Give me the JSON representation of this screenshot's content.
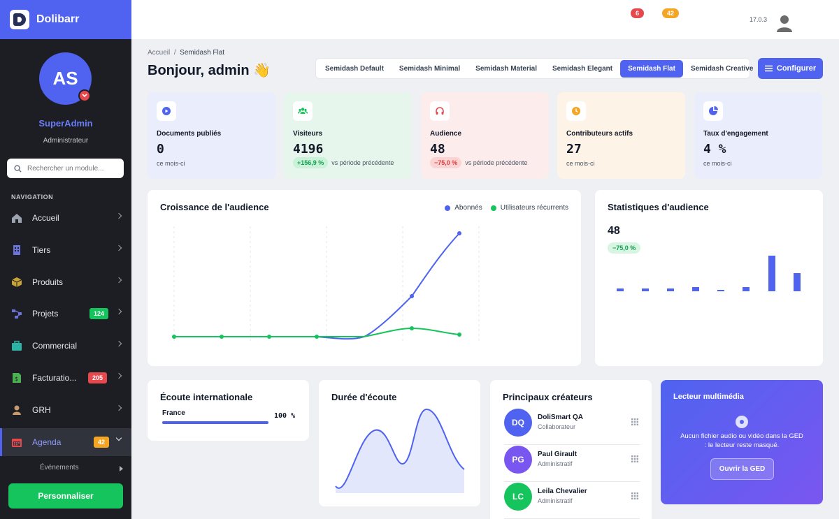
{
  "app": {
    "name": "Dolibarr",
    "version": "17.0.3"
  },
  "user": {
    "initials": "AS",
    "name": "SuperAdmin",
    "role": "Administrateur"
  },
  "search": {
    "placeholder": "Rechercher un module..."
  },
  "nav": {
    "title": "NAVIGATION",
    "items": [
      {
        "label": "Accueil",
        "icon": "home-icon",
        "color": "#9ca3af",
        "badge": ""
      },
      {
        "label": "Tiers",
        "icon": "building-icon",
        "color": "#6b74d9",
        "badge": ""
      },
      {
        "label": "Produits",
        "icon": "box-icon",
        "color": "#c8a234",
        "badge": ""
      },
      {
        "label": "Projets",
        "icon": "project-icon",
        "color": "#6b74d9",
        "badge": "124",
        "badge_color": "#16c45d"
      },
      {
        "label": "Commercial",
        "icon": "briefcase-icon",
        "color": "#2bb3a5",
        "badge": ""
      },
      {
        "label": "Facturatio...",
        "icon": "invoice-icon",
        "color": "#4caf50",
        "badge": "205",
        "badge_color": "#e5484d"
      },
      {
        "label": "GRH",
        "icon": "person-icon",
        "color": "#c79a6b",
        "badge": ""
      },
      {
        "label": "Agenda",
        "icon": "calendar-icon",
        "color": "#e5484d",
        "badge": "42",
        "badge_color": "#f5a524"
      }
    ],
    "sub_item": "Événements"
  },
  "personalize_label": "Personnaliser",
  "topbar": {
    "badge_1": "6",
    "badge_2": "42"
  },
  "breadcrumb": {
    "home": "Accueil",
    "sep": "/",
    "current": "Semidash Flat"
  },
  "greeting": "Bonjour, admin 👋",
  "tabs": [
    "Semidash Default",
    "Semidash Minimal",
    "Semidash Material",
    "Semidash Elegant",
    "Semidash Flat",
    "Semidash Creative"
  ],
  "active_tab": "Semidash Flat",
  "configure_label": "Configurer",
  "stats": [
    {
      "label": "Documents publiés",
      "value": "0",
      "sub": "ce mois-ci",
      "chip": "",
      "bg": "#eaedfc",
      "icon_color": "#4f63f0",
      "icon": "play-icon"
    },
    {
      "label": "Visiteurs",
      "value": "4196",
      "sub": "vs période précédente",
      "chip": "+156,9 %",
      "chip_bg": "#c9f2d9",
      "chip_color": "#12a150",
      "bg": "#e6f6ec",
      "icon_color": "#16c45d",
      "icon": "users-icon"
    },
    {
      "label": "Audience",
      "value": "48",
      "sub": "vs période précédente",
      "chip": "−75,0 %",
      "chip_bg": "#fbd3d3",
      "chip_color": "#d93d3d",
      "bg": "#fdecec",
      "icon_color": "#e5484d",
      "icon": "headphones-icon"
    },
    {
      "label": "Contributeurs actifs",
      "value": "27",
      "sub": "ce mois-ci",
      "chip": "",
      "bg": "#fdf3e6",
      "icon_color": "#f5a524",
      "icon": "clock-icon"
    },
    {
      "label": "Taux d'engagement",
      "value": "4 %",
      "sub": "ce mois-ci",
      "chip": "",
      "bg": "#eaedfc",
      "icon_color": "#4f63f0",
      "icon": "pie-icon"
    }
  ],
  "growth": {
    "title": "Croissance de l'audience",
    "legend": [
      {
        "name": "Abonnés",
        "color": "#4f63f0"
      },
      {
        "name": "Utilisateurs récurrents",
        "color": "#16c45d"
      }
    ]
  },
  "audience_stats": {
    "title": "Statistiques d'audience",
    "value": "48",
    "chip": "−75,0 %"
  },
  "international": {
    "title": "Écoute internationale",
    "country": "France",
    "percent_label": "100 %",
    "percent": 100
  },
  "duration": {
    "title": "Durée d'écoute"
  },
  "creators": {
    "title": "Principaux créateurs",
    "items": [
      {
        "initials": "DQ",
        "name": "DoliSmart QA",
        "role": "Collaborateur",
        "color": "#4f63f0"
      },
      {
        "initials": "PG",
        "name": "Paul Girault",
        "role": "Administratif",
        "color": "#7a56f0"
      },
      {
        "initials": "LC",
        "name": "Leila Chevalier",
        "role": "Administratif",
        "color": "#16c45d"
      }
    ]
  },
  "media": {
    "title": "Lecteur multimédia",
    "message": "Aucun fichier audio ou vidéo dans la GED : le lecteur reste masqué.",
    "button": "Ouvrir la GED"
  }
}
